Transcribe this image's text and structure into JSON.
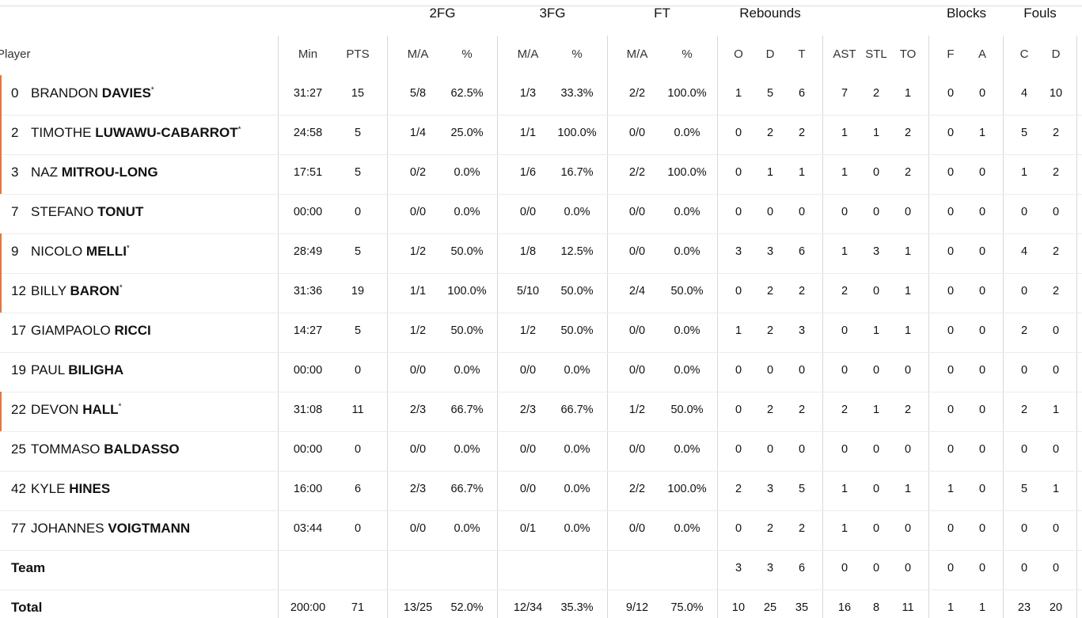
{
  "table": {
    "groups": [
      {
        "label": "2FG",
        "span": [
          2,
          3
        ]
      },
      {
        "label": "3FG",
        "span": [
          4,
          5
        ]
      },
      {
        "label": "FT",
        "span": [
          6,
          7
        ]
      },
      {
        "label": "Rebounds",
        "span": [
          8,
          10
        ]
      },
      {
        "label": "Blocks",
        "span": [
          14,
          15
        ]
      },
      {
        "label": "Fouls",
        "span": [
          16,
          17
        ]
      }
    ],
    "player_header": "Player",
    "columns": [
      "Min",
      "PTS",
      "M/A",
      "%",
      "M/A",
      "%",
      "M/A",
      "%",
      "O",
      "D",
      "T",
      "AST",
      "STL",
      "TO",
      "F",
      "A",
      "C",
      "D"
    ],
    "rows": [
      {
        "number": 0,
        "first": "BRANDON",
        "last": "DAVIES",
        "mark": "*",
        "highlight": true,
        "stats": [
          "31:27",
          15,
          "5/8",
          "62.5%",
          "1/3",
          "33.3%",
          "2/2",
          "100.0%",
          1,
          5,
          6,
          7,
          2,
          1,
          0,
          0,
          4,
          10
        ]
      },
      {
        "number": 2,
        "first": "TIMOTHE",
        "last": "LUWAWU-CABARROT",
        "mark": "*",
        "highlight": true,
        "stats": [
          "24:58",
          5,
          "1/4",
          "25.0%",
          "1/1",
          "100.0%",
          "0/0",
          "0.0%",
          0,
          2,
          2,
          1,
          1,
          2,
          0,
          1,
          5,
          2
        ]
      },
      {
        "number": 3,
        "first": "NAZ",
        "last": "MITROU-LONG",
        "highlight": true,
        "stats": [
          "17:51",
          5,
          "0/2",
          "0.0%",
          "1/6",
          "16.7%",
          "2/2",
          "100.0%",
          0,
          1,
          1,
          1,
          0,
          2,
          0,
          0,
          1,
          2
        ]
      },
      {
        "number": 7,
        "first": "STEFANO",
        "last": "TONUT",
        "highlight": false,
        "stats": [
          "00:00",
          0,
          "0/0",
          "0.0%",
          "0/0",
          "0.0%",
          "0/0",
          "0.0%",
          0,
          0,
          0,
          0,
          0,
          0,
          0,
          0,
          0,
          0
        ]
      },
      {
        "number": 9,
        "first": "NICOLO",
        "last": "MELLI",
        "mark": "*",
        "highlight": true,
        "stats": [
          "28:49",
          5,
          "1/2",
          "50.0%",
          "1/8",
          "12.5%",
          "0/0",
          "0.0%",
          3,
          3,
          6,
          1,
          3,
          1,
          0,
          0,
          4,
          2
        ]
      },
      {
        "number": 12,
        "first": "BILLY",
        "last": "BARON",
        "mark": "*",
        "highlight": true,
        "stats": [
          "31:36",
          19,
          "1/1",
          "100.0%",
          "5/10",
          "50.0%",
          "2/4",
          "50.0%",
          0,
          2,
          2,
          2,
          0,
          1,
          0,
          0,
          0,
          2
        ]
      },
      {
        "number": 17,
        "first": "GIAMPAOLO",
        "last": "RICCI",
        "highlight": false,
        "stats": [
          "14:27",
          5,
          "1/2",
          "50.0%",
          "1/2",
          "50.0%",
          "0/0",
          "0.0%",
          1,
          2,
          3,
          0,
          1,
          1,
          0,
          0,
          2,
          0
        ]
      },
      {
        "number": 19,
        "first": "PAUL",
        "last": "BILIGHA",
        "highlight": false,
        "stats": [
          "00:00",
          0,
          "0/0",
          "0.0%",
          "0/0",
          "0.0%",
          "0/0",
          "0.0%",
          0,
          0,
          0,
          0,
          0,
          0,
          0,
          0,
          0,
          0
        ]
      },
      {
        "number": 22,
        "first": "DEVON",
        "last": "HALL",
        "mark": "*",
        "highlight": true,
        "stats": [
          "31:08",
          11,
          "2/3",
          "66.7%",
          "2/3",
          "66.7%",
          "1/2",
          "50.0%",
          0,
          2,
          2,
          2,
          1,
          2,
          0,
          0,
          2,
          1
        ]
      },
      {
        "number": 25,
        "first": "TOMMASO",
        "last": "BALDASSO",
        "highlight": false,
        "stats": [
          "00:00",
          0,
          "0/0",
          "0.0%",
          "0/0",
          "0.0%",
          "0/0",
          "0.0%",
          0,
          0,
          0,
          0,
          0,
          0,
          0,
          0,
          0,
          0
        ]
      },
      {
        "number": 42,
        "first": "KYLE",
        "last": "HINES",
        "highlight": false,
        "stats": [
          "16:00",
          6,
          "2/3",
          "66.7%",
          "0/0",
          "0.0%",
          "2/2",
          "100.0%",
          2,
          3,
          5,
          1,
          0,
          1,
          1,
          0,
          5,
          1
        ]
      },
      {
        "number": 77,
        "first": "JOHANNES",
        "last": "VOIGTMANN",
        "highlight": false,
        "stats": [
          "03:44",
          0,
          "0/0",
          "0.0%",
          "0/1",
          "0.0%",
          "0/0",
          "0.0%",
          0,
          2,
          2,
          1,
          0,
          0,
          0,
          0,
          0,
          0
        ]
      },
      {
        "label": "Team",
        "stats": [
          null,
          null,
          null,
          null,
          null,
          null,
          null,
          null,
          3,
          3,
          6,
          0,
          0,
          0,
          0,
          0,
          0,
          0
        ]
      },
      {
        "label": "Total",
        "stats": [
          "200:00",
          71,
          "13/25",
          "52.0%",
          "12/34",
          "35.3%",
          "9/12",
          "75.0%",
          10,
          25,
          35,
          16,
          8,
          11,
          1,
          1,
          23,
          20
        ]
      }
    ]
  }
}
